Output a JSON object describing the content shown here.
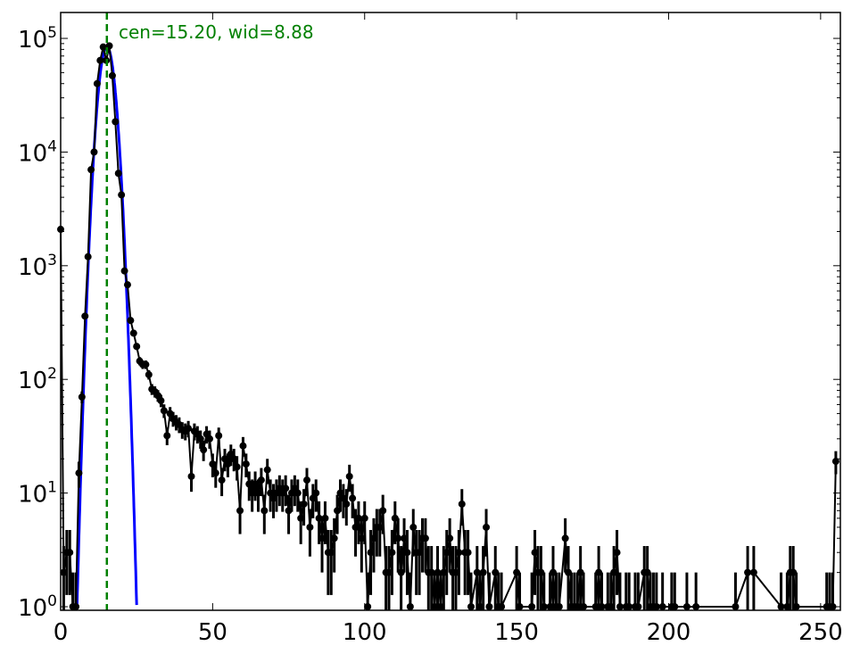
{
  "chart_data": {
    "type": "scatter",
    "title": "",
    "xlabel": "",
    "ylabel": "",
    "xlim": [
      0,
      256.5
    ],
    "ylim": [
      0.93,
      169000
    ],
    "yscale": "log",
    "grid": false,
    "x_ticks": [
      "0",
      "50",
      "100",
      "150",
      "200",
      "250"
    ],
    "x_tick_values": [
      0,
      50,
      100,
      150,
      200,
      250
    ],
    "y_ticks": [
      {
        "base": "10",
        "exp": "0"
      },
      {
        "base": "10",
        "exp": "1"
      },
      {
        "base": "10",
        "exp": "2"
      },
      {
        "base": "10",
        "exp": "3"
      },
      {
        "base": "10",
        "exp": "4"
      },
      {
        "base": "10",
        "exp": "5"
      }
    ],
    "y_tick_values": [
      1,
      10,
      100,
      1000,
      10000,
      100000
    ],
    "series": [
      {
        "kind": "histogram counts with Poisson error bars (x = bin index; 0 = empty bin)",
        "color": "#000000",
        "y": [
          2090,
          2,
          3,
          3,
          1,
          1,
          15,
          70,
          360,
          1200,
          7000,
          10000,
          40000,
          64000,
          84000,
          64000,
          86000,
          47000,
          18500,
          6500,
          4200,
          900,
          680,
          330,
          255,
          195,
          145,
          135,
          135,
          110,
          82,
          78,
          72,
          65,
          53,
          32,
          50,
          45,
          42,
          40,
          36,
          35,
          37,
          14,
          35,
          33,
          30,
          24,
          33,
          30,
          18,
          15,
          32,
          13,
          20,
          18,
          22,
          20,
          17,
          7,
          26,
          18,
          12,
          10,
          12,
          10,
          13,
          7,
          16,
          10,
          9,
          10,
          11,
          10,
          11,
          7,
          10,
          11,
          10,
          6,
          8,
          13,
          5,
          9,
          10,
          6,
          4,
          6,
          3,
          3,
          4,
          7,
          10,
          9,
          8,
          14,
          9,
          5,
          6,
          4,
          6,
          1,
          3,
          4,
          5,
          5,
          7,
          2,
          2,
          3,
          6,
          4,
          2,
          4,
          3,
          1,
          5,
          3,
          3,
          4,
          4,
          2,
          2,
          1,
          2,
          1,
          2,
          3,
          4,
          2,
          2,
          3,
          8,
          3,
          3,
          1,
          0,
          2,
          1,
          2,
          5,
          1,
          0,
          2,
          1,
          1,
          0,
          0,
          0,
          0,
          2,
          1,
          0,
          0,
          0,
          1,
          3,
          2,
          2,
          1,
          0,
          1,
          2,
          1,
          1,
          0,
          4,
          2,
          1,
          1,
          1,
          2,
          1,
          0,
          0,
          0,
          1,
          2,
          1,
          0,
          1,
          1,
          2,
          3,
          1,
          0,
          1,
          1,
          0,
          1,
          1,
          0,
          2,
          2,
          1,
          1,
          1,
          0,
          1,
          0,
          0,
          1,
          1,
          0,
          0,
          0,
          1,
          0,
          0,
          1,
          0,
          0,
          0,
          0,
          0,
          0,
          0,
          0,
          0,
          0,
          0,
          0,
          1,
          0,
          0,
          0,
          2,
          0,
          2,
          0,
          0,
          0,
          0,
          0,
          0,
          0,
          0,
          1,
          0,
          1,
          2,
          2,
          1,
          0,
          0,
          0,
          0,
          0,
          0,
          0,
          0,
          0,
          1,
          1,
          1,
          19
        ]
      },
      {
        "kind": "gaussian fit",
        "color": "#0000ff",
        "center": 15.2,
        "sigma": 2.06,
        "amplitude": 85000
      }
    ],
    "vline": {
      "x": 15.2,
      "color": "#008000",
      "style": "dashed"
    },
    "annotation": {
      "text": "cen=15.20, wid=8.88",
      "color": "#008000"
    }
  }
}
